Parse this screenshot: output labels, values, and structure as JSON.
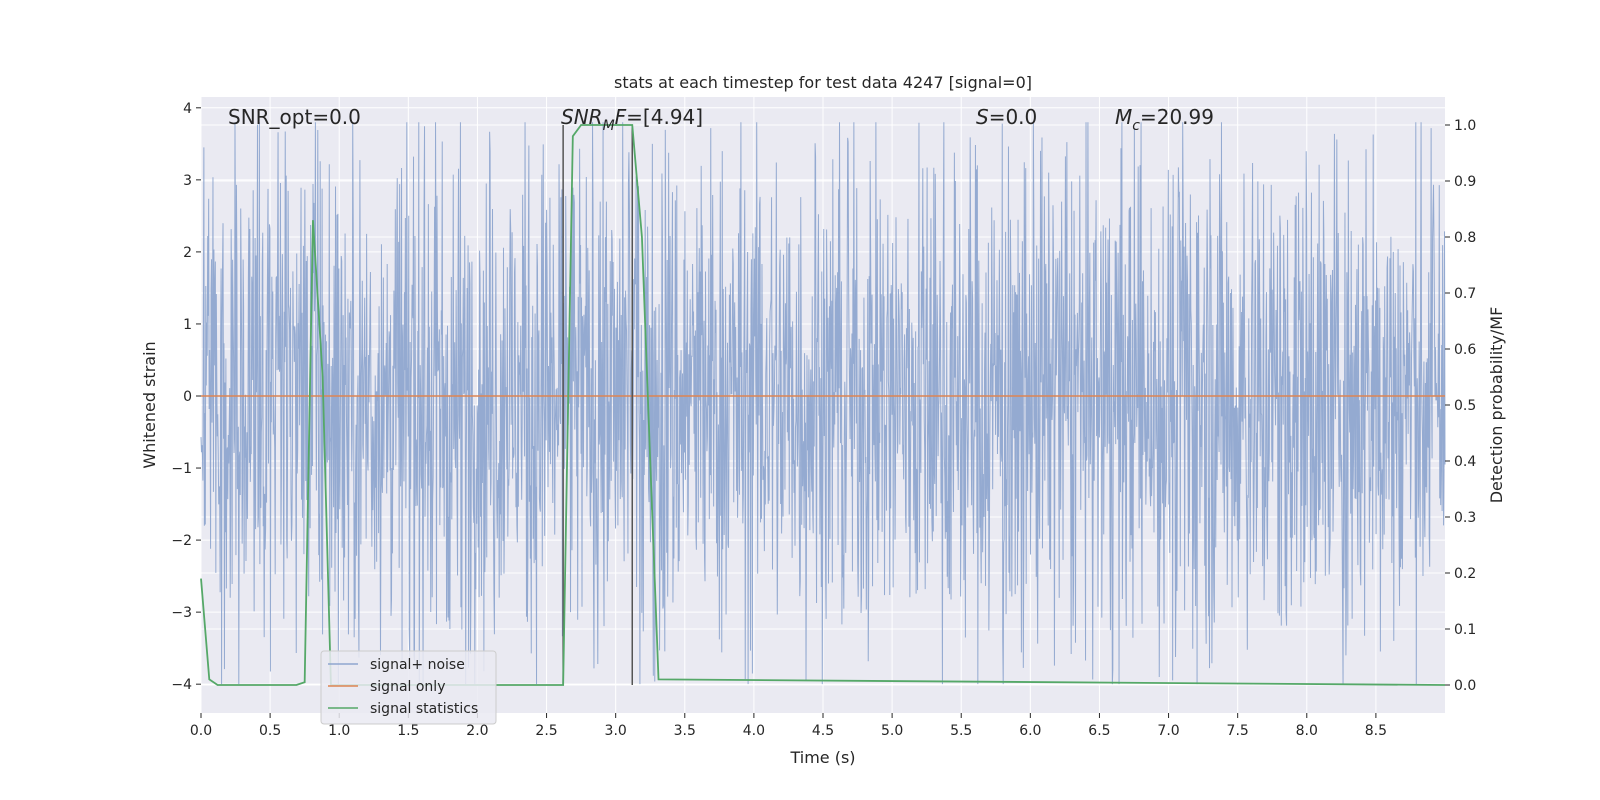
{
  "chart_data": {
    "type": "line",
    "title": "stats at each timestep for test data 4247 [signal=0]",
    "xlabel": "Time (s)",
    "ylabel_left": "Whitened strain",
    "ylabel_right": "Detection probability/MF",
    "xlim": [
      0.0,
      9.0
    ],
    "ylim_left": [
      -4.4,
      4.15
    ],
    "ylim_right": [
      -0.05,
      1.05
    ],
    "x_ticks": [
      "0.0",
      "0.5",
      "1.0",
      "1.5",
      "2.0",
      "2.5",
      "3.0",
      "3.5",
      "4.0",
      "4.5",
      "5.0",
      "5.5",
      "6.0",
      "6.5",
      "7.0",
      "7.5",
      "8.0",
      "8.5"
    ],
    "y_ticks_left": [
      "4",
      "3",
      "2",
      "1",
      "0",
      "−1",
      "−2",
      "−3",
      "−4"
    ],
    "y_ticks_right": [
      "1.0",
      "0.9",
      "0.8",
      "0.7",
      "0.6",
      "0.5",
      "0.4",
      "0.3",
      "0.2",
      "0.1",
      "0.0"
    ],
    "grid": true,
    "legend_position": "lower-left",
    "annotations": {
      "snr_opt": "SNR_opt=0.0",
      "snr_mf": "=[4.94]",
      "s_value": "=0.0",
      "mc_value": "=20.99"
    },
    "series": [
      {
        "name": "signal+ noise",
        "axis": "left",
        "color": "#8fa6cf",
        "noise_description": "dense whitened noise, roughly within ±3.8",
        "amplitude_typical": 1.5,
        "amplitude_max": 3.8
      },
      {
        "name": "signal only",
        "axis": "left",
        "color": "#dd8452",
        "x": [
          0.0,
          9.0
        ],
        "y": [
          0.0,
          0.0
        ]
      },
      {
        "name": "signal statistics",
        "axis": "right",
        "color": "#55a868",
        "x": [
          0.0,
          0.06,
          0.12,
          0.69,
          0.75,
          0.81,
          0.88,
          0.94,
          1.0,
          2.62,
          2.69,
          2.75,
          3.12,
          3.19,
          3.25,
          3.31,
          9.0
        ],
        "y": [
          0.19,
          0.01,
          0.0,
          0.0,
          0.005,
          0.83,
          0.55,
          0.0,
          0.0,
          0.0,
          0.98,
          1.0,
          1.0,
          0.8,
          0.4,
          0.01,
          0.0
        ]
      }
    ],
    "vertical_lines": [
      {
        "x": 2.62,
        "y0": 0.0,
        "y1": 1.0,
        "color": "#555555"
      },
      {
        "x": 3.12,
        "y0": 0.0,
        "y1": 1.0,
        "color": "#555555"
      }
    ]
  }
}
